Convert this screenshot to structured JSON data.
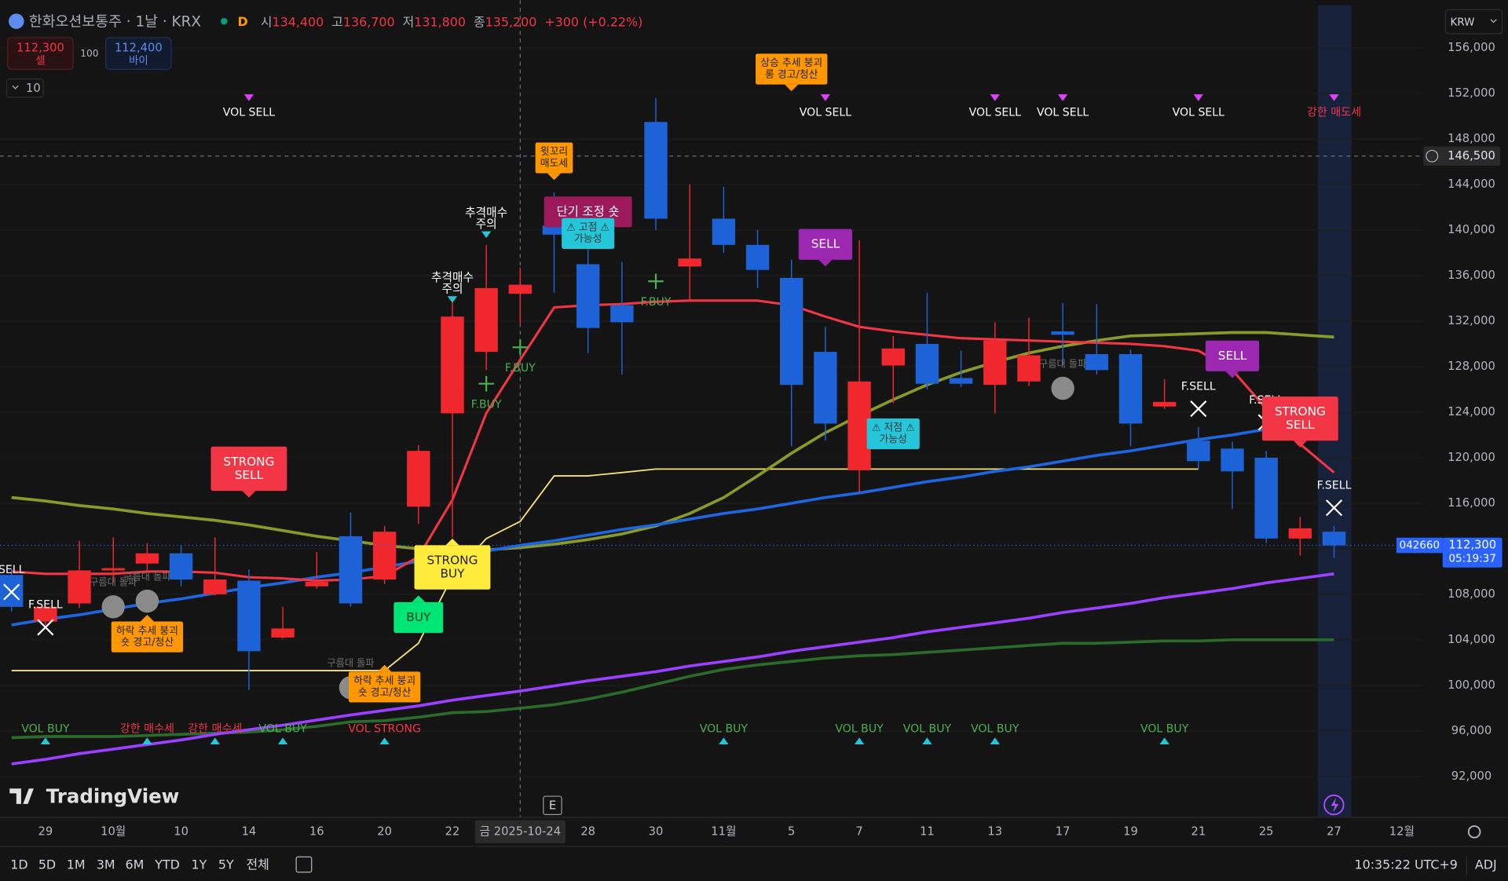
{
  "chart_data": {
    "type": "candlestick",
    "title": "한화오션보통주 · 1날 · KRX",
    "interval": "D",
    "header": {
      "open_label": "시",
      "open": "134,400",
      "high_label": "고",
      "high": "136,700",
      "low_label": "저",
      "low": "131,800",
      "close_label": "종",
      "close": "135,200",
      "change": "+300 (+0.22%)"
    },
    "categories": [
      null,
      "29",
      null,
      "10월",
      null,
      "10",
      null,
      "14",
      null,
      "16",
      null,
      "20",
      null,
      "22",
      null,
      "금 2025-10-24",
      null,
      "28",
      null,
      "30",
      null,
      "11월",
      null,
      "5",
      null,
      "7",
      null,
      "11",
      null,
      "13",
      null,
      "17",
      null,
      "19",
      null,
      "21",
      null,
      "25",
      null,
      "27",
      null,
      "12월",
      null
    ],
    "open": [
      109700,
      105600,
      107200,
      110100,
      110700,
      111600,
      108000,
      109200,
      104200,
      108700,
      113100,
      109300,
      115700,
      123900,
      129300,
      134400,
      140400,
      137000,
      133400,
      149500,
      136800,
      141000,
      138700,
      135800,
      129300,
      118900,
      128100,
      130000,
      127000,
      126400,
      126700,
      131100,
      129100,
      129100,
      124500,
      121500,
      120800,
      120000,
      112900,
      113500,
      null,
      null,
      null
    ],
    "high": [
      110200,
      107000,
      112700,
      113000,
      112500,
      112300,
      113000,
      110200,
      106900,
      111700,
      115200,
      114000,
      121100,
      134000,
      138700,
      136700,
      143300,
      139300,
      137200,
      151600,
      144000,
      143800,
      140000,
      137400,
      131500,
      139100,
      130700,
      134500,
      129400,
      131900,
      132300,
      133600,
      133500,
      129500,
      126900,
      122700,
      121400,
      120600,
      114800,
      114000,
      null,
      null,
      null
    ],
    "low": [
      106500,
      105300,
      106800,
      109000,
      110000,
      108700,
      107900,
      99600,
      104100,
      108500,
      106900,
      108900,
      114200,
      113000,
      127700,
      131800,
      134500,
      129200,
      127300,
      140000,
      133900,
      138000,
      134900,
      121000,
      121500,
      117000,
      124800,
      126000,
      126200,
      123900,
      126300,
      128100,
      127300,
      121000,
      124300,
      119000,
      115500,
      112500,
      111400,
      111200,
      null,
      null,
      null
    ],
    "close": [
      106900,
      106900,
      110100,
      110300,
      111600,
      109300,
      109300,
      103000,
      105000,
      109100,
      107200,
      113500,
      120600,
      132400,
      134900,
      135200,
      139600,
      131400,
      131900,
      141000,
      137500,
      138700,
      136500,
      126400,
      123000,
      126700,
      129600,
      126500,
      126500,
      130300,
      129000,
      130800,
      127700,
      123000,
      124900,
      119700,
      118800,
      112900,
      113800,
      112300,
      null,
      null,
      null
    ],
    "up_color": "#f0282d",
    "down_color": "#1d62d6",
    "ylim": [
      88400,
      160200
    ],
    "yticks": [
      {
        "value": 92000,
        "label": "92,000"
      },
      {
        "value": 96000,
        "label": "96,000"
      },
      {
        "value": 100000,
        "label": "100,000"
      },
      {
        "value": 104000,
        "label": "104,000"
      },
      {
        "value": 108000,
        "label": "108,000"
      },
      {
        "value": 112000,
        "label": "112,000"
      },
      {
        "value": 116000,
        "label": "116,000"
      },
      {
        "value": 120000,
        "label": "120,000"
      },
      {
        "value": 124000,
        "label": "124,000"
      },
      {
        "value": 128000,
        "label": "128,000"
      },
      {
        "value": 132000,
        "label": "132,000"
      },
      {
        "value": 136000,
        "label": "136,000"
      },
      {
        "value": 140000,
        "label": "140,000"
      },
      {
        "value": 144000,
        "label": "144,000"
      },
      {
        "value": 148000,
        "label": "148,000"
      },
      {
        "value": 152000,
        "label": "152,000"
      },
      {
        "value": 156000,
        "label": "156,000"
      }
    ],
    "grid": true,
    "currency": "KRW",
    "overlays": [
      {
        "color": "#2a6a2a",
        "width": 3,
        "values": [
          95400,
          95500,
          95500,
          95500,
          95600,
          95700,
          95800,
          95900,
          96100,
          96400,
          96800,
          96900,
          97200,
          97600,
          97700,
          98000,
          98300,
          98800,
          99400,
          100100,
          100800,
          101400,
          101800,
          102100,
          102400,
          102600,
          102700,
          102900,
          103100,
          103300,
          103500,
          103700,
          103700,
          103800,
          103900,
          103900,
          104000,
          104000,
          104000,
          104000,
          null,
          null,
          null
        ]
      },
      {
        "color": "#f7e27a",
        "width": 1.5,
        "values": [
          101300,
          101300,
          101300,
          101300,
          101300,
          101300,
          101300,
          101300,
          101300,
          101300,
          101300,
          101300,
          103700,
          109600,
          112900,
          114400,
          118400,
          118400,
          118700,
          119000,
          119000,
          119000,
          119000,
          119000,
          119000,
          119000,
          119000,
          119000,
          119000,
          119000,
          119000,
          119000,
          119000,
          119000,
          119000,
          119000,
          null,
          null,
          null,
          null,
          null,
          null,
          null
        ]
      },
      {
        "color": "#8a9a2a",
        "width": 3,
        "values": [
          116500,
          116200,
          115800,
          115500,
          115100,
          114800,
          114500,
          114100,
          113600,
          113100,
          112700,
          112300,
          112000,
          111900,
          111900,
          112100,
          112400,
          112800,
          113300,
          114000,
          115100,
          116500,
          118400,
          120400,
          122200,
          123700,
          125100,
          126400,
          127500,
          128400,
          129200,
          129800,
          130300,
          130700,
          130800,
          130900,
          131000,
          131000,
          130800,
          130600,
          null,
          null,
          null
        ]
      },
      {
        "color": "#1e66e0",
        "width": 3,
        "values": [
          105300,
          105800,
          106200,
          106700,
          107200,
          107600,
          108100,
          108600,
          109000,
          109500,
          109900,
          110400,
          110900,
          111300,
          111800,
          112300,
          112700,
          113200,
          113700,
          114100,
          114600,
          115100,
          115500,
          116000,
          116500,
          116900,
          117400,
          117900,
          118300,
          118800,
          119200,
          119700,
          120200,
          120600,
          121100,
          121600,
          122000,
          122500,
          null,
          null,
          null,
          null,
          null
        ]
      },
      {
        "color": "#9c40ff",
        "width": 3,
        "values": [
          93100,
          93500,
          94000,
          94400,
          94800,
          95200,
          95700,
          96100,
          96500,
          96950,
          97400,
          97800,
          98200,
          98700,
          99100,
          99500,
          99950,
          100400,
          100800,
          101200,
          101700,
          102100,
          102500,
          103000,
          103400,
          103800,
          104200,
          104700,
          105100,
          105500,
          105900,
          106400,
          106800,
          107200,
          107700,
          108100,
          108500,
          109000,
          109400,
          109800,
          null,
          null,
          null
        ]
      },
      {
        "color": "#f23645",
        "width": 2.5,
        "values": [
          110000,
          109800,
          109800,
          109800,
          110000,
          110000,
          109900,
          109500,
          109400,
          109200,
          109300,
          109600,
          111300,
          116300,
          123900,
          128600,
          133200,
          133400,
          133500,
          133700,
          133800,
          133800,
          133800,
          133400,
          132400,
          131500,
          131100,
          130800,
          130500,
          130400,
          130300,
          130200,
          130100,
          130000,
          129800,
          129400,
          127700,
          124300,
          121200,
          118700,
          null,
          null,
          null
        ]
      }
    ],
    "signals": [
      {
        "kind": "top",
        "x": 7,
        "lines": [
          "VOL SELL"
        ],
        "text_color": "#ffffff",
        "color": "#e040fb"
      },
      {
        "kind": "top",
        "x": 24,
        "lines": [
          "VOL SELL"
        ],
        "text_color": "#ffffff",
        "color": "#e040fb"
      },
      {
        "kind": "top",
        "x": 29,
        "lines": [
          "VOL SELL"
        ],
        "text_color": "#ffffff",
        "color": "#e040fb"
      },
      {
        "kind": "top",
        "x": 31,
        "lines": [
          "VOL SELL"
        ],
        "text_color": "#ffffff",
        "color": "#e040fb"
      },
      {
        "kind": "top",
        "x": 35,
        "lines": [
          "VOL SELL"
        ],
        "text_color": "#ffffff",
        "color": "#e040fb"
      },
      {
        "kind": "top",
        "x": 39,
        "lines": [
          "강한 매도세"
        ],
        "text_color": "#f23645",
        "color": "#e040fb"
      },
      {
        "kind": "bottom",
        "x": 1,
        "lines": [
          "VOL BUY"
        ],
        "text_color": "#4caf50",
        "color": "#26c6da"
      },
      {
        "kind": "bottom",
        "x": 4,
        "lines": [
          "강한 매수세"
        ],
        "text_color": "#f23645",
        "color": "#26c6da"
      },
      {
        "kind": "bottom",
        "x": 6,
        "lines": [
          "강한 매수세"
        ],
        "text_color": "#f23645",
        "color": "#26c6da"
      },
      {
        "kind": "bottom",
        "x": 8,
        "lines": [
          "VOL BUY"
        ],
        "text_color": "#4caf50",
        "color": "#26c6da"
      },
      {
        "kind": "bottom",
        "x": 11,
        "lines": [
          "VOL STRONG"
        ],
        "text_color": "#f23645",
        "color": "#26c6da"
      },
      {
        "kind": "bottom",
        "x": 21,
        "lines": [
          "VOL BUY"
        ],
        "text_color": "#4caf50",
        "color": "#26c6da"
      },
      {
        "kind": "bottom",
        "x": 25,
        "lines": [
          "VOL BUY"
        ],
        "text_color": "#4caf50",
        "color": "#26c6da"
      },
      {
        "kind": "bottom",
        "x": 27,
        "lines": [
          "VOL BUY"
        ],
        "text_color": "#4caf50",
        "color": "#26c6da"
      },
      {
        "kind": "bottom",
        "x": 29,
        "lines": [
          "VOL BUY"
        ],
        "text_color": "#4caf50",
        "color": "#26c6da"
      },
      {
        "kind": "bottom",
        "x": 34,
        "lines": [
          "VOL BUY"
        ],
        "text_color": "#4caf50",
        "color": "#26c6da"
      },
      {
        "kind": "cloud",
        "x": 3,
        "price": 106900,
        "lines": [
          "구름대 돌파"
        ],
        "text_color": "#6f6f6f",
        "color": "#8a8a8a"
      },
      {
        "kind": "cloud",
        "x": 4,
        "price": 107400,
        "lines": [
          "구름대 돌파"
        ],
        "text_color": "#6f6f6f",
        "color": "#8a8a8a"
      },
      {
        "kind": "cloud",
        "x": 10,
        "price": 99800,
        "lines": [
          "구름대 돌파"
        ],
        "text_color": "#6f6f6f",
        "color": "#8a8a8a"
      },
      {
        "kind": "cloud",
        "x": 31,
        "price": 126100,
        "lines": [
          "구름대 돌파"
        ],
        "text_color": "#6f6f6f",
        "color": "#8a8a8a"
      },
      {
        "kind": "cross",
        "x": 0,
        "price": 108200,
        "lines": [
          "SELL"
        ],
        "text_color": "#ffffff",
        "color": "#ffffff"
      },
      {
        "kind": "cross",
        "x": 1,
        "price": 105100,
        "lines": [
          "F.SELL"
        ],
        "text_color": "#ffffff",
        "color": "#ffffff"
      },
      {
        "kind": "cross",
        "x": 35,
        "price": 124300,
        "lines": [
          "F.SELL"
        ],
        "text_color": "#ffffff",
        "color": "#ffffff"
      },
      {
        "kind": "cross",
        "x": 37,
        "price": 123100,
        "lines": [
          "F.SELL"
        ],
        "text_color": "#ffffff",
        "color": "#ffffff"
      },
      {
        "kind": "cross",
        "x": 39,
        "price": 115600,
        "lines": [
          "F.SELL"
        ],
        "text_color": "#ffffff",
        "color": "#ffffff"
      },
      {
        "kind": "plus",
        "x": 14,
        "price": 126500,
        "lines": [
          "F.BUY"
        ],
        "text_color": "#4caf50",
        "color": "#4caf50"
      },
      {
        "kind": "plus",
        "x": 15,
        "price": 129700,
        "lines": [
          "F.BUY"
        ],
        "text_color": "#4caf50",
        "color": "#4caf50"
      },
      {
        "kind": "plus",
        "x": 19,
        "price": 135500,
        "lines": [
          "F.BUY"
        ],
        "text_color": "#4caf50",
        "color": "#4caf50"
      },
      {
        "kind": "chase",
        "x": 14,
        "price": 139300,
        "lines": [
          "추격매수",
          "주의"
        ],
        "text_color": "#ffffff",
        "color": "#26c6da"
      },
      {
        "kind": "chase",
        "x": 13,
        "price": 133600,
        "lines": [
          "추격매수",
          "주의"
        ],
        "text_color": "#ffffff",
        "color": "#26c6da"
      },
      {
        "kind": "box-down",
        "x": 23,
        "price": 152200,
        "lines": [
          "상승 추세 붕괴",
          "롱 경고/청산"
        ],
        "text_color": "#222222",
        "color": "#ff9800",
        "emphasis": "plain"
      },
      {
        "kind": "box-down",
        "x": 16,
        "price": 144400,
        "lines": [
          "윗꼬리",
          "매도세"
        ],
        "text_color": "#222222",
        "color": "#ff9800",
        "emphasis": "plain"
      },
      {
        "kind": "box-center",
        "x": 17,
        "price": 141600,
        "lines": [
          "단기 조정 숏"
        ],
        "text_color": "#ffffff",
        "color": "#9c1a5c",
        "emphasis": "strong"
      },
      {
        "kind": "box-center",
        "x": 17,
        "price": 139700,
        "lines": [
          "⚠ 고점 ⚠",
          "가능성"
        ],
        "text_color": "#333333",
        "color": "#26c6da",
        "emphasis": "plain"
      },
      {
        "kind": "box-center",
        "x": 26,
        "price": 122100,
        "lines": [
          "⚠ 저점 ⚠",
          "가능성"
        ],
        "text_color": "#333333",
        "color": "#26c6da",
        "emphasis": "plain"
      },
      {
        "kind": "box-down",
        "x": 7,
        "price": 116500,
        "lines": [
          "STRONG",
          "SELL"
        ],
        "text_color": "#ffffff",
        "color": "#f23645",
        "emphasis": "strong"
      },
      {
        "kind": "box-down",
        "x": 38,
        "price": 120900,
        "lines": [
          "STRONG",
          "SELL"
        ],
        "text_color": "#ffffff",
        "color": "#f23645",
        "emphasis": "strong"
      },
      {
        "kind": "box-down",
        "x": 24,
        "price": 136800,
        "lines": [
          "SELL"
        ],
        "text_color": "#ffffff",
        "color": "#9c27b0",
        "emphasis": "strong"
      },
      {
        "kind": "box-down",
        "x": 36,
        "price": 127000,
        "lines": [
          "SELL"
        ],
        "text_color": "#ffffff",
        "color": "#9c27b0",
        "emphasis": "strong"
      },
      {
        "kind": "box-up",
        "x": 12,
        "price": 107900,
        "lines": [
          "BUY"
        ],
        "text_color": "#1b3b1b",
        "color": "#00e676",
        "emphasis": "strong"
      },
      {
        "kind": "box-up",
        "x": 13,
        "price": 112900,
        "lines": [
          "STRONG",
          "BUY"
        ],
        "text_color": "#222222",
        "color": "#ffeb3b",
        "emphasis": "strong"
      },
      {
        "kind": "box-up",
        "x": 4,
        "price": 106200,
        "lines": [
          "하락 추세 붕괴",
          "숏 경고/청산"
        ],
        "text_color": "#222222",
        "color": "#ff9800",
        "emphasis": "plain"
      },
      {
        "kind": "box-up",
        "x": 11,
        "price": 101800,
        "lines": [
          "하락 추세 붕괴",
          "숏 경고/청산"
        ],
        "text_color": "#222222",
        "color": "#ff9800",
        "emphasis": "plain"
      }
    ],
    "crosshair": {
      "x": "금 2025-10-24",
      "y": {
        "value": 146500,
        "label": "146,500"
      }
    },
    "last_price": {
      "value": 112300,
      "label": "112,300",
      "symbol": "042660",
      "countdown": "05:19:37",
      "color": "#2962ff"
    }
  },
  "trade_panel": {
    "sell_price": "112,300",
    "sell_label": "셀",
    "quantity": "100",
    "buy_price": "112,400",
    "buy_label": "바이",
    "indicators": "10"
  },
  "logo": "TradingView",
  "earnings_marker": "E",
  "toolbar": {
    "ranges": [
      "1D",
      "5D",
      "1M",
      "3M",
      "6M",
      "YTD",
      "1Y",
      "5Y",
      "전체"
    ],
    "time": "10:35:22 UTC+9",
    "adj": "ADJ"
  }
}
